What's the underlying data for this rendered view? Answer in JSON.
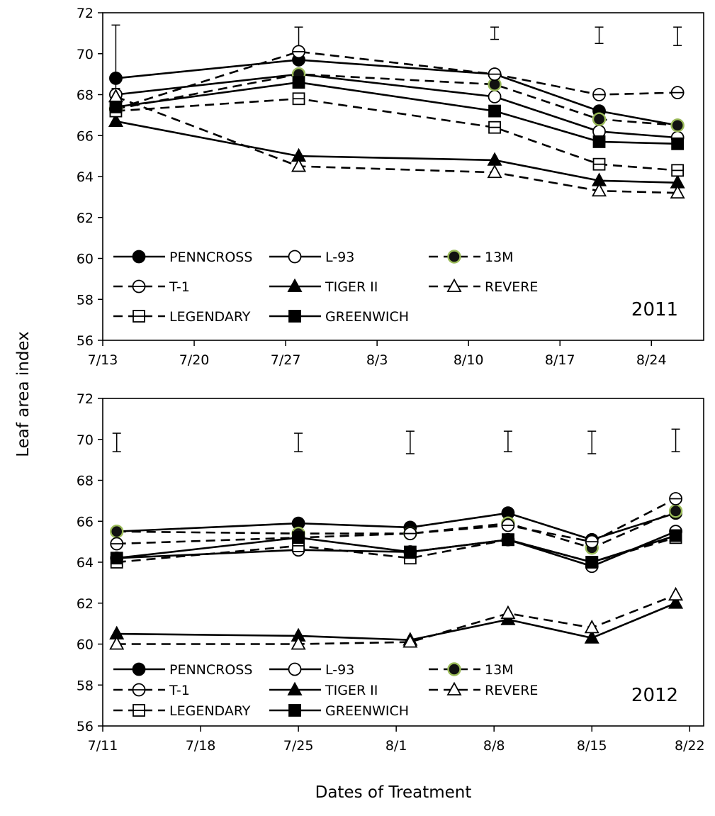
{
  "figure": {
    "ylabel": "Leaf area index",
    "xlabel": "Dates of Treatment"
  },
  "chart_data": [
    {
      "type": "line",
      "year_label": "2011",
      "ylim": [
        56,
        72
      ],
      "yticks": [
        "56",
        "58",
        "60",
        "62",
        "64",
        "66",
        "68",
        "70",
        "72"
      ],
      "x_start": "2011-07-13",
      "x_end": "2011-08-28",
      "xticks": [
        {
          "date": "2011-07-13",
          "label": "7/13"
        },
        {
          "date": "2011-07-20",
          "label": "7/20"
        },
        {
          "date": "2011-07-27",
          "label": "7/27"
        },
        {
          "date": "2011-08-03",
          "label": "8/3"
        },
        {
          "date": "2011-08-10",
          "label": "8/10"
        },
        {
          "date": "2011-08-17",
          "label": "8/17"
        },
        {
          "date": "2011-08-24",
          "label": "8/24"
        }
      ],
      "x": [
        "2011-07-14",
        "2011-07-28",
        "2011-08-12",
        "2011-08-20",
        "2011-08-26"
      ],
      "error_bars": [
        {
          "x": "2011-07-14",
          "low": 68.3,
          "high": 71.4
        },
        {
          "x": "2011-07-28",
          "low": 70.2,
          "high": 71.3
        },
        {
          "x": "2011-08-12",
          "low": 70.7,
          "high": 71.3
        },
        {
          "x": "2011-08-20",
          "low": 70.5,
          "high": 71.3
        },
        {
          "x": "2011-08-26",
          "low": 70.4,
          "high": 71.3
        }
      ],
      "series": [
        {
          "name": "PENNCROSS",
          "marker": "filled-circle",
          "dash": false,
          "values": [
            68.8,
            69.7,
            69.0,
            67.2,
            66.5
          ]
        },
        {
          "name": "L-93",
          "marker": "open-circle",
          "dash": false,
          "values": [
            68.0,
            69.0,
            67.9,
            66.2,
            65.9
          ]
        },
        {
          "name": "13M",
          "marker": "circle-green-edge",
          "dash": true,
          "values": [
            67.3,
            69.0,
            68.5,
            66.8,
            66.5
          ]
        },
        {
          "name": "T-1",
          "marker": "circle-hbar",
          "dash": true,
          "values": [
            67.3,
            70.1,
            69.0,
            68.0,
            68.1
          ]
        },
        {
          "name": "TIGER II",
          "marker": "filled-triangle",
          "dash": false,
          "values": [
            66.7,
            65.0,
            64.8,
            63.8,
            63.7
          ]
        },
        {
          "name": "REVERE",
          "marker": "open-triangle",
          "dash": true,
          "values": [
            67.9,
            64.5,
            64.2,
            63.3,
            63.2
          ]
        },
        {
          "name": "LEGENDARY",
          "marker": "square-hbar",
          "dash": true,
          "values": [
            67.2,
            67.8,
            66.4,
            64.6,
            64.3
          ]
        },
        {
          "name": "GREENWICH",
          "marker": "filled-square",
          "dash": false,
          "values": [
            67.4,
            68.6,
            67.2,
            65.7,
            65.6
          ]
        }
      ]
    },
    {
      "type": "line",
      "year_label": "2012",
      "ylim": [
        56,
        72
      ],
      "yticks": [
        "56",
        "58",
        "60",
        "62",
        "64",
        "66",
        "68",
        "70",
        "72"
      ],
      "x_start": "2012-07-11",
      "x_end": "2012-08-23",
      "xticks": [
        {
          "date": "2012-07-11",
          "label": "7/11"
        },
        {
          "date": "2012-07-18",
          "label": "7/18"
        },
        {
          "date": "2012-07-25",
          "label": "7/25"
        },
        {
          "date": "2012-08-01",
          "label": "8/1"
        },
        {
          "date": "2012-08-08",
          "label": "8/8"
        },
        {
          "date": "2012-08-15",
          "label": "8/15"
        },
        {
          "date": "2012-08-22",
          "label": "8/22"
        }
      ],
      "x": [
        "2012-07-12",
        "2012-07-25",
        "2012-08-02",
        "2012-08-09",
        "2012-08-15",
        "2012-08-21"
      ],
      "error_bars": [
        {
          "x": "2012-07-12",
          "low": 69.4,
          "high": 70.3
        },
        {
          "x": "2012-07-25",
          "low": 69.4,
          "high": 70.3
        },
        {
          "x": "2012-08-02",
          "low": 69.3,
          "high": 70.4
        },
        {
          "x": "2012-08-09",
          "low": 69.4,
          "high": 70.4
        },
        {
          "x": "2012-08-15",
          "low": 69.3,
          "high": 70.4
        },
        {
          "x": "2012-08-21",
          "low": 69.4,
          "high": 70.5
        }
      ],
      "series": [
        {
          "name": "PENNCROSS",
          "marker": "filled-circle",
          "dash": false,
          "values": [
            65.5,
            65.9,
            65.7,
            66.4,
            65.1,
            66.4
          ]
        },
        {
          "name": "L-93",
          "marker": "open-circle",
          "dash": false,
          "values": [
            64.2,
            64.6,
            64.5,
            65.1,
            63.8,
            65.5
          ]
        },
        {
          "name": "13M",
          "marker": "circle-green-edge",
          "dash": true,
          "values": [
            65.5,
            65.4,
            65.4,
            65.9,
            64.7,
            66.5
          ]
        },
        {
          "name": "T-1",
          "marker": "circle-hbar",
          "dash": true,
          "values": [
            64.9,
            65.2,
            65.4,
            65.8,
            65.0,
            67.1
          ]
        },
        {
          "name": "TIGER II",
          "marker": "filled-triangle",
          "dash": false,
          "values": [
            60.5,
            60.4,
            60.2,
            61.2,
            60.3,
            62.0
          ]
        },
        {
          "name": "REVERE",
          "marker": "open-triangle",
          "dash": true,
          "values": [
            60.0,
            60.0,
            60.1,
            61.5,
            60.8,
            62.4
          ]
        },
        {
          "name": "LEGENDARY",
          "marker": "square-hbar",
          "dash": true,
          "values": [
            64.0,
            64.8,
            64.2,
            65.1,
            64.0,
            65.2
          ]
        },
        {
          "name": "GREENWICH",
          "marker": "filled-square",
          "dash": false,
          "values": [
            64.2,
            65.2,
            64.5,
            65.1,
            64.0,
            65.3
          ]
        }
      ]
    }
  ]
}
